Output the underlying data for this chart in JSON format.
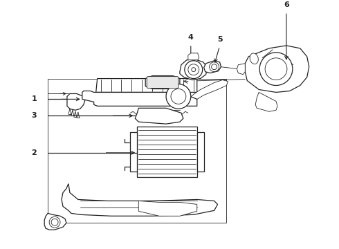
{
  "bg_color": "#ffffff",
  "line_color": "#222222",
  "label_color": "#000000",
  "figsize": [
    4.9,
    3.6
  ],
  "dpi": 100,
  "lw": 0.9,
  "lw_thin": 0.6,
  "label_fontsize": 8
}
